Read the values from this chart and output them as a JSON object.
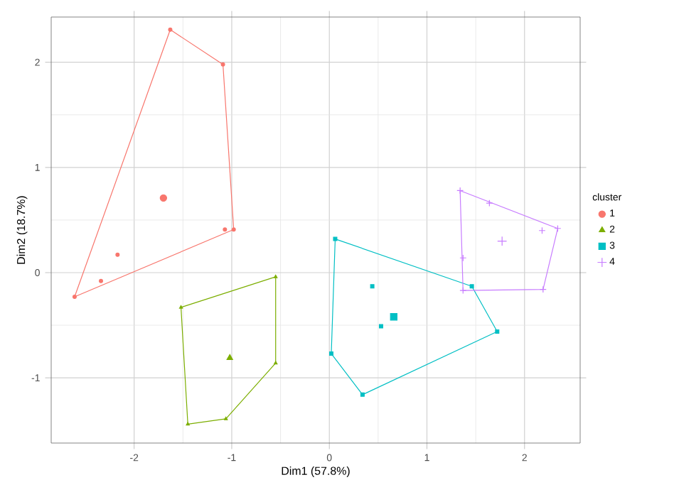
{
  "chart_data": {
    "type": "scatter",
    "xlabel": "Dim1 (57.8%)",
    "ylabel": "Dim2 (18.7%)",
    "legend_title": "cluster",
    "legend": "right",
    "grid": true,
    "xlim": [
      -2.85,
      2.57
    ],
    "ylim": [
      -1.62,
      2.43
    ],
    "xticks": [
      -2,
      -1,
      0,
      1,
      2
    ],
    "yticks": [
      -1,
      0,
      1,
      2
    ],
    "series": [
      {
        "type": "line",
        "color": "#F8766D",
        "line_style": "solid",
        "x": [
          -2.61,
          -1.63,
          -1.09,
          -0.98
        ],
        "values": [
          -0.23,
          2.31,
          1.98,
          0.41
        ]
      },
      {
        "type": "line",
        "color": "#F8766D",
        "line_style": "solid",
        "x": [
          -2.61,
          -0.98
        ],
        "values": [
          -0.23,
          0.41
        ]
      },
      {
        "color": "#F8766D",
        "marker": "circle",
        "x": [
          -1.63,
          -1.09,
          -0.98,
          -1.07,
          -2.17,
          -2.34,
          -2.61
        ],
        "values": [
          2.31,
          1.98,
          0.41,
          0.41,
          0.17,
          -0.08,
          -0.23
        ]
      },
      {
        "name": "1",
        "color": "#F8766D",
        "marker": "circle",
        "x": [
          -1.7
        ],
        "values": [
          0.71
        ]
      },
      {
        "type": "line",
        "color": "#7CAE00",
        "line_style": "solid",
        "x": [
          -1.52,
          -0.55,
          -0.55
        ],
        "values": [
          -0.33,
          -0.04,
          -0.86
        ]
      },
      {
        "type": "line",
        "color": "#7CAE00",
        "line_style": "solid",
        "x": [
          -1.52,
          -1.45,
          -1.06,
          -0.55
        ],
        "values": [
          -0.33,
          -1.44,
          -1.39,
          -0.86
        ]
      },
      {
        "color": "#7CAE00",
        "marker": "triangle",
        "x": [
          -0.55,
          -1.52,
          -0.55,
          -1.06,
          -1.45
        ],
        "values": [
          -0.04,
          -0.33,
          -0.86,
          -1.39,
          -1.44
        ]
      },
      {
        "name": "2",
        "color": "#7CAE00",
        "marker": "triangle",
        "x": [
          -1.02
        ],
        "values": [
          -0.81
        ]
      },
      {
        "type": "line",
        "color": "#00BFC4",
        "line_style": "solid",
        "x": [
          0.02,
          0.06,
          1.46,
          1.72
        ],
        "values": [
          -0.77,
          0.32,
          -0.13,
          -0.56
        ]
      },
      {
        "type": "line",
        "color": "#00BFC4",
        "line_style": "solid",
        "x": [
          0.02,
          0.34,
          1.72
        ],
        "values": [
          -0.77,
          -1.16,
          -0.56
        ]
      },
      {
        "color": "#00BFC4",
        "marker": "square",
        "x": [
          0.06,
          1.46,
          1.72,
          0.34,
          0.02,
          0.44,
          0.53
        ],
        "values": [
          0.32,
          -0.13,
          -0.56,
          -1.16,
          -0.77,
          -0.13,
          -0.51
        ]
      },
      {
        "name": "3",
        "color": "#00BFC4",
        "marker": "square",
        "x": [
          0.66
        ],
        "values": [
          -0.42
        ]
      },
      {
        "type": "line",
        "color": "#C77CFF",
        "line_style": "solid",
        "x": [
          1.34,
          2.34
        ],
        "values": [
          0.78,
          0.42
        ]
      },
      {
        "type": "line",
        "color": "#C77CFF",
        "line_style": "solid",
        "x": [
          1.34,
          1.37,
          2.19,
          2.34
        ],
        "values": [
          0.78,
          -0.17,
          -0.16,
          0.42
        ]
      },
      {
        "color": "#C77CFF",
        "marker": "cross",
        "x": [
          1.34,
          1.64,
          2.34,
          2.18,
          1.37,
          1.37,
          2.19
        ],
        "values": [
          0.78,
          0.66,
          0.42,
          0.4,
          0.14,
          -0.17,
          -0.16
        ]
      },
      {
        "name": "4",
        "color": "#C77CFF",
        "marker": "cross",
        "x": [
          1.77
        ],
        "values": [
          0.3
        ]
      }
    ]
  }
}
